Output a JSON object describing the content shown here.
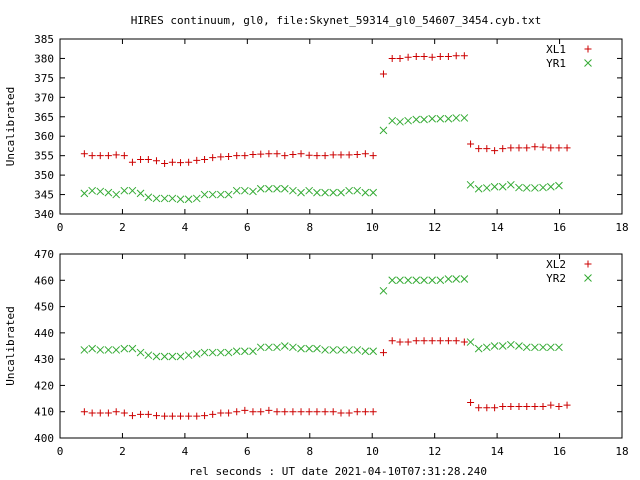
{
  "title": "HIRES continuum, gl0, file:Skynet_59314_gl0_54607_3454.cyb.txt",
  "xlabel": "rel seconds : UT date 2021-04-10T07:31:28.240",
  "colors": {
    "red": "#cc0000",
    "green": "#33aa33"
  },
  "chart_data": [
    {
      "type": "scatter",
      "ylabel": "Uncalibrated",
      "xlim": [
        0,
        18
      ],
      "ylim": [
        340,
        385
      ],
      "xticks": [
        0,
        2,
        4,
        6,
        8,
        10,
        12,
        14,
        16,
        18
      ],
      "yticks": [
        340,
        345,
        350,
        355,
        360,
        365,
        370,
        375,
        380,
        385
      ],
      "legend": "top-right",
      "series": [
        {
          "name": "XL1",
          "color": "#cc0000",
          "marker": "plus",
          "points": [
            [
              0.78,
              355.5
            ],
            [
              1.03,
              355.0
            ],
            [
              1.29,
              355.0
            ],
            [
              1.55,
              355.0
            ],
            [
              1.8,
              355.2
            ],
            [
              2.06,
              355.0
            ],
            [
              2.32,
              353.3
            ],
            [
              2.58,
              354.0
            ],
            [
              2.83,
              354.0
            ],
            [
              3.09,
              353.7
            ],
            [
              3.35,
              353.0
            ],
            [
              3.6,
              353.3
            ],
            [
              3.86,
              353.2
            ],
            [
              4.12,
              353.3
            ],
            [
              4.38,
              353.8
            ],
            [
              4.63,
              354.0
            ],
            [
              4.89,
              354.5
            ],
            [
              5.15,
              354.7
            ],
            [
              5.4,
              354.8
            ],
            [
              5.66,
              355.0
            ],
            [
              5.92,
              355.0
            ],
            [
              6.18,
              355.3
            ],
            [
              6.43,
              355.4
            ],
            [
              6.69,
              355.5
            ],
            [
              6.95,
              355.5
            ],
            [
              7.2,
              355.0
            ],
            [
              7.46,
              355.3
            ],
            [
              7.72,
              355.5
            ],
            [
              7.98,
              355.1
            ],
            [
              8.23,
              355.0
            ],
            [
              8.49,
              355.0
            ],
            [
              8.75,
              355.2
            ],
            [
              9.0,
              355.2
            ],
            [
              9.26,
              355.2
            ],
            [
              9.52,
              355.3
            ],
            [
              9.78,
              355.5
            ],
            [
              10.03,
              355.0
            ],
            [
              10.36,
              376.0
            ],
            [
              10.64,
              380.0
            ],
            [
              10.89,
              380.0
            ],
            [
              11.15,
              380.3
            ],
            [
              11.41,
              380.5
            ],
            [
              11.66,
              380.5
            ],
            [
              11.92,
              380.3
            ],
            [
              12.18,
              380.5
            ],
            [
              12.44,
              380.5
            ],
            [
              12.69,
              380.7
            ],
            [
              12.95,
              380.7
            ],
            [
              13.15,
              358.0
            ],
            [
              13.41,
              356.8
            ],
            [
              13.67,
              356.8
            ],
            [
              13.92,
              356.3
            ],
            [
              14.18,
              356.8
            ],
            [
              14.44,
              357.0
            ],
            [
              14.7,
              357.0
            ],
            [
              14.95,
              357.0
            ],
            [
              15.21,
              357.3
            ],
            [
              15.47,
              357.2
            ],
            [
              15.72,
              357.0
            ],
            [
              15.98,
              357.0
            ],
            [
              16.24,
              357.0
            ]
          ]
        },
        {
          "name": "YR1",
          "color": "#33aa33",
          "marker": "cross",
          "points": [
            [
              0.78,
              345.3
            ],
            [
              1.03,
              346.0
            ],
            [
              1.29,
              345.8
            ],
            [
              1.55,
              345.5
            ],
            [
              1.8,
              345.0
            ],
            [
              2.06,
              346.0
            ],
            [
              2.32,
              346.0
            ],
            [
              2.58,
              345.3
            ],
            [
              2.83,
              344.3
            ],
            [
              3.09,
              344.0
            ],
            [
              3.35,
              344.0
            ],
            [
              3.6,
              344.0
            ],
            [
              3.86,
              343.8
            ],
            [
              4.12,
              343.8
            ],
            [
              4.38,
              344.0
            ],
            [
              4.63,
              345.0
            ],
            [
              4.89,
              345.0
            ],
            [
              5.15,
              345.0
            ],
            [
              5.4,
              345.0
            ],
            [
              5.66,
              346.0
            ],
            [
              5.92,
              346.0
            ],
            [
              6.18,
              345.8
            ],
            [
              6.43,
              346.5
            ],
            [
              6.69,
              346.5
            ],
            [
              6.95,
              346.5
            ],
            [
              7.2,
              346.5
            ],
            [
              7.46,
              346.0
            ],
            [
              7.72,
              345.5
            ],
            [
              7.98,
              346.0
            ],
            [
              8.23,
              345.5
            ],
            [
              8.49,
              345.5
            ],
            [
              8.75,
              345.5
            ],
            [
              9.0,
              345.5
            ],
            [
              9.26,
              346.0
            ],
            [
              9.52,
              346.0
            ],
            [
              9.78,
              345.5
            ],
            [
              10.03,
              345.5
            ],
            [
              10.36,
              361.5
            ],
            [
              10.64,
              364.0
            ],
            [
              10.89,
              363.7
            ],
            [
              11.15,
              364.0
            ],
            [
              11.41,
              364.3
            ],
            [
              11.66,
              364.3
            ],
            [
              11.92,
              364.5
            ],
            [
              12.18,
              364.5
            ],
            [
              12.44,
              364.5
            ],
            [
              12.69,
              364.7
            ],
            [
              12.95,
              364.7
            ],
            [
              13.15,
              347.5
            ],
            [
              13.41,
              346.5
            ],
            [
              13.67,
              346.7
            ],
            [
              13.92,
              347.0
            ],
            [
              14.18,
              347.0
            ],
            [
              14.44,
              347.5
            ],
            [
              14.7,
              346.8
            ],
            [
              14.95,
              346.7
            ],
            [
              15.21,
              346.7
            ],
            [
              15.47,
              346.8
            ],
            [
              15.72,
              347.0
            ],
            [
              15.98,
              347.3
            ]
          ]
        }
      ]
    },
    {
      "type": "scatter",
      "ylabel": "Uncalibrated",
      "xlim": [
        0,
        18
      ],
      "ylim": [
        400,
        470
      ],
      "xticks": [
        0,
        2,
        4,
        6,
        8,
        10,
        12,
        14,
        16,
        18
      ],
      "yticks": [
        400,
        410,
        420,
        430,
        440,
        450,
        460,
        470
      ],
      "legend": "top-right",
      "series": [
        {
          "name": "XL2",
          "color": "#cc0000",
          "marker": "plus",
          "points": [
            [
              0.78,
              410.0
            ],
            [
              1.03,
              409.5
            ],
            [
              1.29,
              409.5
            ],
            [
              1.55,
              409.5
            ],
            [
              1.8,
              410.0
            ],
            [
              2.06,
              409.5
            ],
            [
              2.32,
              408.5
            ],
            [
              2.58,
              409.0
            ],
            [
              2.83,
              409.0
            ],
            [
              3.09,
              408.5
            ],
            [
              3.35,
              408.3
            ],
            [
              3.6,
              408.3
            ],
            [
              3.86,
              408.3
            ],
            [
              4.12,
              408.3
            ],
            [
              4.38,
              408.3
            ],
            [
              4.63,
              408.5
            ],
            [
              4.89,
              409.0
            ],
            [
              5.15,
              409.5
            ],
            [
              5.4,
              409.5
            ],
            [
              5.66,
              410.0
            ],
            [
              5.92,
              410.5
            ],
            [
              6.18,
              410.0
            ],
            [
              6.43,
              410.0
            ],
            [
              6.69,
              410.5
            ],
            [
              6.95,
              410.0
            ],
            [
              7.2,
              410.0
            ],
            [
              7.46,
              410.0
            ],
            [
              7.72,
              410.0
            ],
            [
              7.98,
              410.0
            ],
            [
              8.23,
              410.0
            ],
            [
              8.49,
              410.0
            ],
            [
              8.75,
              410.0
            ],
            [
              9.0,
              409.5
            ],
            [
              9.26,
              409.5
            ],
            [
              9.52,
              410.0
            ],
            [
              9.78,
              410.0
            ],
            [
              10.03,
              410.0
            ],
            [
              10.36,
              432.5
            ],
            [
              10.64,
              437.0
            ],
            [
              10.89,
              436.5
            ],
            [
              11.15,
              436.5
            ],
            [
              11.41,
              437.0
            ],
            [
              11.66,
              437.0
            ],
            [
              11.92,
              437.0
            ],
            [
              12.18,
              437.0
            ],
            [
              12.44,
              437.0
            ],
            [
              12.69,
              437.0
            ],
            [
              12.95,
              436.5
            ],
            [
              13.15,
              413.5
            ],
            [
              13.41,
              411.5
            ],
            [
              13.67,
              411.5
            ],
            [
              13.92,
              411.5
            ],
            [
              14.18,
              412.0
            ],
            [
              14.44,
              412.0
            ],
            [
              14.7,
              412.0
            ],
            [
              14.95,
              412.0
            ],
            [
              15.21,
              412.0
            ],
            [
              15.47,
              412.0
            ],
            [
              15.72,
              412.5
            ],
            [
              15.98,
              412.0
            ],
            [
              16.24,
              412.5
            ]
          ]
        },
        {
          "name": "YR2",
          "color": "#33aa33",
          "marker": "cross",
          "points": [
            [
              0.78,
              433.5
            ],
            [
              1.03,
              434.0
            ],
            [
              1.29,
              433.5
            ],
            [
              1.55,
              433.5
            ],
            [
              1.8,
              433.5
            ],
            [
              2.06,
              434.0
            ],
            [
              2.32,
              434.0
            ],
            [
              2.58,
              432.5
            ],
            [
              2.83,
              431.5
            ],
            [
              3.09,
              431.0
            ],
            [
              3.35,
              431.0
            ],
            [
              3.6,
              431.0
            ],
            [
              3.86,
              431.0
            ],
            [
              4.12,
              431.5
            ],
            [
              4.38,
              432.0
            ],
            [
              4.63,
              432.5
            ],
            [
              4.89,
              432.5
            ],
            [
              5.15,
              432.5
            ],
            [
              5.4,
              432.5
            ],
            [
              5.66,
              433.0
            ],
            [
              5.92,
              433.0
            ],
            [
              6.18,
              433.0
            ],
            [
              6.43,
              434.5
            ],
            [
              6.69,
              434.5
            ],
            [
              6.95,
              434.5
            ],
            [
              7.2,
              435.0
            ],
            [
              7.46,
              434.5
            ],
            [
              7.72,
              434.0
            ],
            [
              7.98,
              434.0
            ],
            [
              8.23,
              434.0
            ],
            [
              8.49,
              433.5
            ],
            [
              8.75,
              433.5
            ],
            [
              9.0,
              433.5
            ],
            [
              9.26,
              433.5
            ],
            [
              9.52,
              433.5
            ],
            [
              9.78,
              433.0
            ],
            [
              10.03,
              433.0
            ],
            [
              10.36,
              456.0
            ],
            [
              10.64,
              460.0
            ],
            [
              10.89,
              460.0
            ],
            [
              11.15,
              460.0
            ],
            [
              11.41,
              460.0
            ],
            [
              11.66,
              460.0
            ],
            [
              11.92,
              460.0
            ],
            [
              12.18,
              460.0
            ],
            [
              12.44,
              460.5
            ],
            [
              12.69,
              460.5
            ],
            [
              12.95,
              460.5
            ],
            [
              13.15,
              436.5
            ],
            [
              13.41,
              434.0
            ],
            [
              13.67,
              434.5
            ],
            [
              13.92,
              435.0
            ],
            [
              14.18,
              435.0
            ],
            [
              14.44,
              435.5
            ],
            [
              14.7,
              435.0
            ],
            [
              14.95,
              434.5
            ],
            [
              15.21,
              434.5
            ],
            [
              15.47,
              434.5
            ],
            [
              15.72,
              434.5
            ],
            [
              15.98,
              434.5
            ]
          ]
        }
      ]
    }
  ]
}
